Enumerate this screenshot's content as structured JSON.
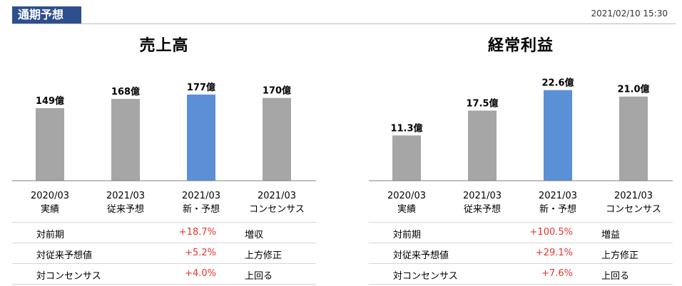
{
  "header": {
    "title": "通期予想",
    "timestamp": "2021/02/10 15:30"
  },
  "colors": {
    "bar_gray": "#a6a6a6",
    "bar_blue": "#5b8fd6",
    "positive": "#e8352a",
    "header_bg": "#2e4f8f"
  },
  "chart_data": [
    {
      "type": "bar",
      "title": "売上高",
      "categories": [
        "2020/03\n実績",
        "2021/03\n従来予想",
        "2021/03\n新・予想",
        "2021/03\nコンセンサス"
      ],
      "values": [
        149,
        168,
        177,
        170
      ],
      "data_labels": [
        "149億",
        "168億",
        "177億",
        "170億"
      ],
      "highlight_index": 2,
      "ylim": [
        0,
        190
      ],
      "grid": false
    },
    {
      "type": "bar",
      "title": "経常利益",
      "categories": [
        "2020/03\n実績",
        "2021/03\n従来予想",
        "2021/03\n新・予想",
        "2021/03\nコンセンサス"
      ],
      "values": [
        11.3,
        17.5,
        22.6,
        21.0
      ],
      "data_labels": [
        "11.3億",
        "17.5億",
        "22.6億",
        "21.0億"
      ],
      "highlight_index": 2,
      "ylim": [
        0,
        24.5
      ],
      "grid": false
    }
  ],
  "tables": [
    {
      "rows": [
        {
          "label": "対前期",
          "value": "+18.7%",
          "comment": "増収"
        },
        {
          "label": "対従来予想値",
          "value": "+5.2%",
          "comment": "上方修正"
        },
        {
          "label": "対コンセンサス",
          "value": "+4.0%",
          "comment": "上回る"
        }
      ]
    },
    {
      "rows": [
        {
          "label": "対前期",
          "value": "+100.5%",
          "comment": "増益"
        },
        {
          "label": "対従来予想値",
          "value": "+29.1%",
          "comment": "上方修正"
        },
        {
          "label": "対コンセンサス",
          "value": "+7.6%",
          "comment": "上回る"
        }
      ]
    }
  ]
}
